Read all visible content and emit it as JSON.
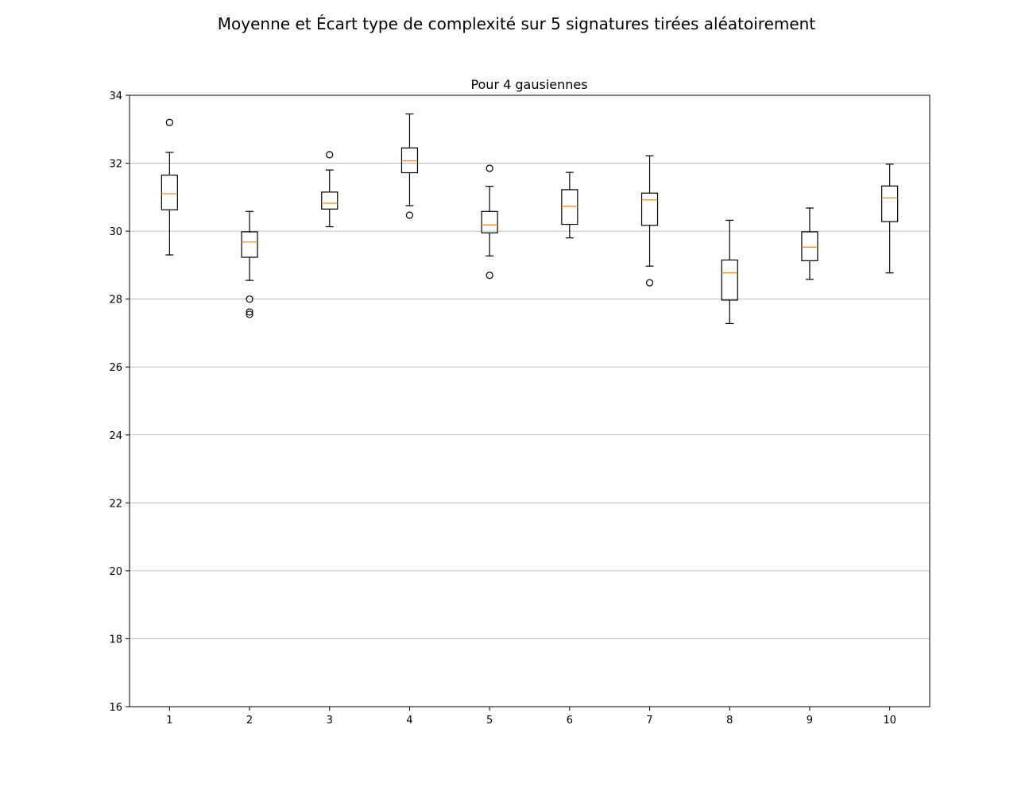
{
  "figure": {
    "suptitle": "Moyenne et Écart type de complexité sur 5 signatures tirées aléatoirement"
  },
  "chart_data": {
    "type": "box",
    "title": "Pour 4 gausiennes",
    "xlabel": "",
    "ylabel": "",
    "ylim": [
      16,
      34
    ],
    "yticks": [
      16,
      18,
      20,
      22,
      24,
      26,
      28,
      30,
      32,
      34
    ],
    "grid": "y",
    "colors": {
      "box": "#000000",
      "median": "#ff7f0e",
      "grid": "#b0b0b0"
    },
    "categories": [
      "1",
      "2",
      "3",
      "4",
      "5",
      "6",
      "7",
      "8",
      "9",
      "10"
    ],
    "boxes": [
      {
        "label": "1",
        "whislo": 29.3,
        "q1": 30.63,
        "med": 31.1,
        "q3": 31.65,
        "whishi": 32.32,
        "fliers": [
          33.2
        ]
      },
      {
        "label": "2",
        "whislo": 28.55,
        "q1": 29.23,
        "med": 29.68,
        "q3": 29.98,
        "whishi": 30.58,
        "fliers": [
          28.0,
          27.62,
          27.55
        ]
      },
      {
        "label": "3",
        "whislo": 30.13,
        "q1": 30.65,
        "med": 30.82,
        "q3": 31.15,
        "whishi": 31.8,
        "fliers": [
          32.25
        ]
      },
      {
        "label": "4",
        "whislo": 30.75,
        "q1": 31.72,
        "med": 32.07,
        "q3": 32.45,
        "whishi": 33.45,
        "fliers": [
          30.47
        ]
      },
      {
        "label": "5",
        "whislo": 29.27,
        "q1": 29.95,
        "med": 30.18,
        "q3": 30.58,
        "whishi": 31.32,
        "fliers": [
          31.85,
          28.7
        ]
      },
      {
        "label": "6",
        "whislo": 29.8,
        "q1": 30.2,
        "med": 30.73,
        "q3": 31.22,
        "whishi": 31.73,
        "fliers": []
      },
      {
        "label": "7",
        "whislo": 28.97,
        "q1": 30.17,
        "med": 30.92,
        "q3": 31.12,
        "whishi": 32.22,
        "fliers": [
          28.48
        ]
      },
      {
        "label": "8",
        "whislo": 27.28,
        "q1": 27.97,
        "med": 28.77,
        "q3": 29.15,
        "whishi": 30.32,
        "fliers": []
      },
      {
        "label": "9",
        "whislo": 28.58,
        "q1": 29.13,
        "med": 29.53,
        "q3": 29.98,
        "whishi": 30.68,
        "fliers": []
      },
      {
        "label": "10",
        "whislo": 28.77,
        "q1": 30.28,
        "med": 30.98,
        "q3": 31.33,
        "whishi": 31.97,
        "fliers": []
      }
    ]
  }
}
